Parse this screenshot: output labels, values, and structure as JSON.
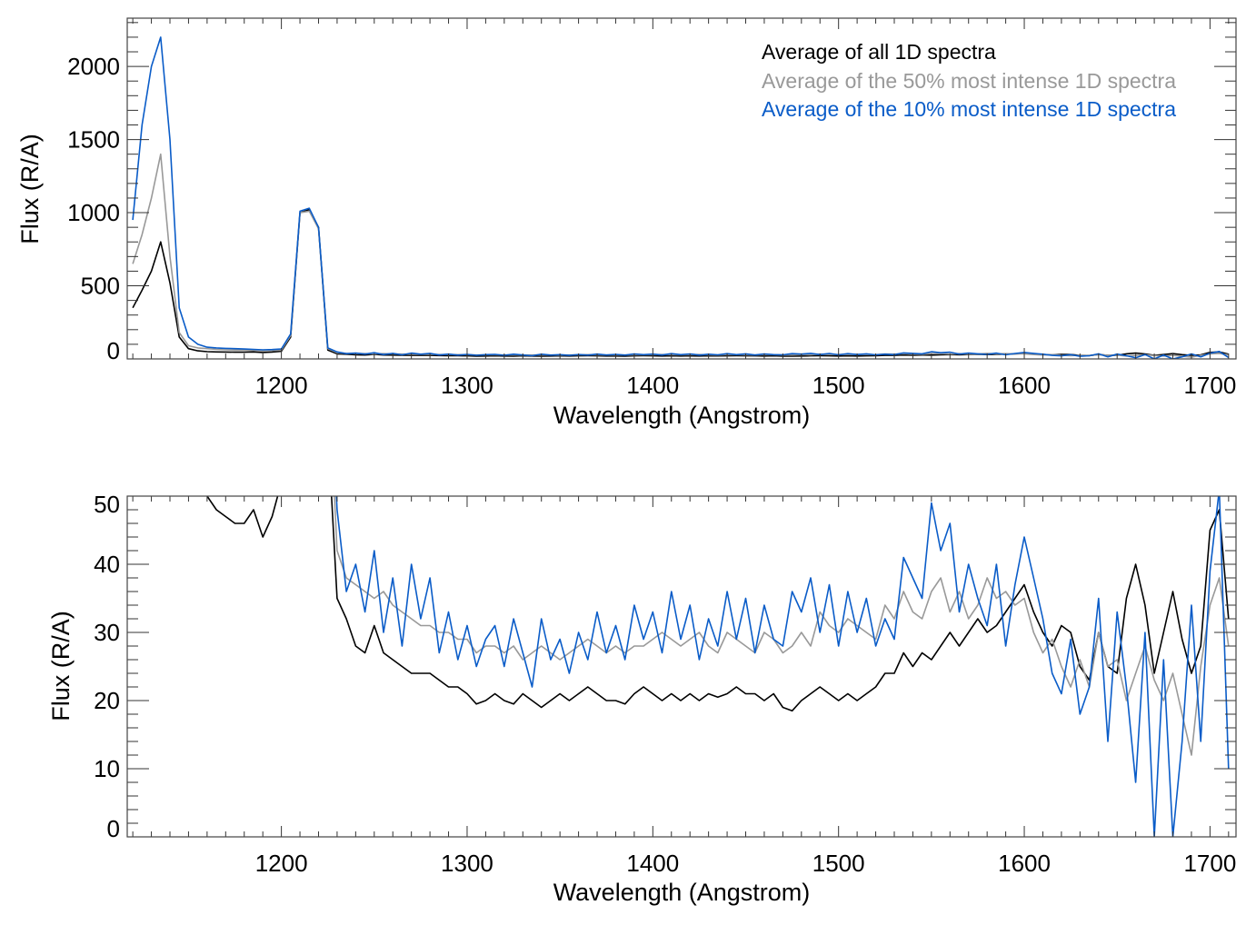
{
  "chart_data": [
    {
      "type": "line",
      "xlabel": "Wavelength (Angstrom)",
      "ylabel": "Flux (R/A)",
      "xlim": [
        1117,
        1714
      ],
      "ylim": [
        0,
        2330
      ],
      "xticks": [
        1200,
        1300,
        1400,
        1500,
        1600,
        1700
      ],
      "yticks": [
        0,
        500,
        1000,
        1500,
        2000
      ],
      "legend_placement": "top-right",
      "legend": [
        "Average of all 1D spectra",
        "Average of the 50% most intense 1D spectra",
        "Average of the 10% most intense 1D spectra"
      ]
    },
    {
      "type": "line",
      "xlabel": "Wavelength (Angstrom)",
      "ylabel": "Flux (R/A)",
      "xlim": [
        1117,
        1714
      ],
      "ylim": [
        0,
        50
      ],
      "xticks": [
        1200,
        1300,
        1400,
        1500,
        1600,
        1700
      ],
      "yticks": [
        0,
        10,
        20,
        30,
        40,
        50
      ]
    }
  ],
  "series_colors": [
    "#000000",
    "#999999",
    "#0a5cc8"
  ],
  "x": [
    1120,
    1125,
    1130,
    1135,
    1140,
    1145,
    1150,
    1155,
    1160,
    1165,
    1170,
    1175,
    1180,
    1185,
    1190,
    1195,
    1200,
    1205,
    1210,
    1215,
    1220,
    1225,
    1230,
    1235,
    1240,
    1245,
    1250,
    1255,
    1260,
    1265,
    1270,
    1275,
    1280,
    1285,
    1290,
    1295,
    1300,
    1305,
    1310,
    1315,
    1320,
    1325,
    1330,
    1335,
    1340,
    1345,
    1350,
    1355,
    1360,
    1365,
    1370,
    1375,
    1380,
    1385,
    1390,
    1395,
    1400,
    1405,
    1410,
    1415,
    1420,
    1425,
    1430,
    1435,
    1440,
    1445,
    1450,
    1455,
    1460,
    1465,
    1470,
    1475,
    1480,
    1485,
    1490,
    1495,
    1500,
    1505,
    1510,
    1515,
    1520,
    1525,
    1530,
    1535,
    1540,
    1545,
    1550,
    1555,
    1560,
    1565,
    1570,
    1575,
    1580,
    1585,
    1590,
    1595,
    1600,
    1605,
    1610,
    1615,
    1620,
    1625,
    1630,
    1635,
    1640,
    1645,
    1650,
    1655,
    1660,
    1665,
    1670,
    1675,
    1680,
    1685,
    1690,
    1695,
    1700,
    1705,
    1710
  ],
  "series": [
    {
      "name": "Average of all 1D spectra",
      "values": [
        350,
        470,
        600,
        800,
        520,
        150,
        70,
        55,
        50,
        48,
        47,
        46,
        46,
        48,
        44,
        47,
        52,
        150,
        1000,
        1020,
        900,
        60,
        35,
        32,
        28,
        27,
        31,
        27,
        26,
        25,
        24,
        24,
        24,
        23,
        22,
        22,
        21,
        19.5,
        20,
        21,
        20,
        19.5,
        21,
        20,
        19,
        20,
        21,
        20,
        21,
        22,
        21,
        20,
        20,
        19.5,
        21,
        22,
        21,
        20,
        21,
        20,
        21,
        20,
        21,
        20.5,
        21,
        22,
        21,
        21,
        20,
        21,
        19,
        18.5,
        20,
        21,
        22,
        21,
        20,
        21,
        20,
        21,
        22,
        24,
        24,
        27,
        25,
        27,
        26,
        28,
        30,
        28,
        30,
        32,
        30,
        31,
        33,
        35,
        37,
        33,
        30,
        28,
        31,
        30,
        25,
        23,
        30,
        25,
        24,
        35,
        40,
        34,
        24,
        30,
        36,
        29,
        24,
        28,
        45,
        48,
        32
      ]
    },
    {
      "name": "Average of the 50% most intense 1D spectra",
      "values": [
        650,
        850,
        1100,
        1400,
        700,
        180,
        90,
        75,
        70,
        65,
        62,
        60,
        60,
        58,
        55,
        58,
        60,
        160,
        1000,
        1010,
        890,
        70,
        42,
        38,
        37,
        36,
        35,
        36,
        34,
        33,
        32,
        31,
        31,
        30,
        30,
        29,
        29,
        27,
        28,
        28,
        27,
        28,
        26,
        27,
        28,
        27,
        26,
        27,
        28,
        29,
        28,
        27,
        28,
        27,
        28,
        28,
        29,
        30,
        29,
        28,
        29,
        30,
        28,
        27,
        30,
        29,
        28,
        27,
        30,
        29,
        27,
        28,
        30,
        28,
        33,
        31,
        30,
        32,
        31,
        30,
        29,
        34,
        32,
        36,
        33,
        32,
        36,
        38,
        33,
        36,
        32,
        34,
        38,
        35,
        36,
        34,
        35,
        30,
        27,
        29,
        25,
        22,
        26,
        22,
        30,
        25,
        26,
        20,
        24,
        28,
        23,
        20,
        24,
        18,
        12,
        25,
        34,
        38,
        28
      ]
    },
    {
      "name": "Average of the 10% most intense 1D spectra",
      "values": [
        950,
        1600,
        2000,
        2200,
        1500,
        350,
        150,
        100,
        80,
        75,
        72,
        70,
        68,
        65,
        62,
        64,
        68,
        170,
        1010,
        1030,
        900,
        75,
        48,
        36,
        40,
        33,
        42,
        30,
        38,
        28,
        40,
        32,
        38,
        27,
        33,
        26,
        31,
        25,
        29,
        31,
        25,
        32,
        27,
        22,
        32,
        26,
        29,
        24,
        30,
        26,
        33,
        27,
        31,
        26,
        34,
        29,
        33,
        27,
        36,
        29,
        34,
        26,
        32,
        28,
        36,
        29,
        35,
        27,
        34,
        29,
        28,
        36,
        33,
        38,
        30,
        37,
        28,
        36,
        30,
        35,
        28,
        32,
        29,
        41,
        38,
        35,
        49,
        42,
        46,
        33,
        40,
        35,
        31,
        40,
        28,
        37,
        44,
        38,
        32,
        24,
        21,
        29,
        18,
        22,
        35,
        14,
        33,
        22,
        8,
        30,
        0,
        26,
        0,
        14,
        34,
        14,
        39,
        51,
        10
      ]
    }
  ]
}
